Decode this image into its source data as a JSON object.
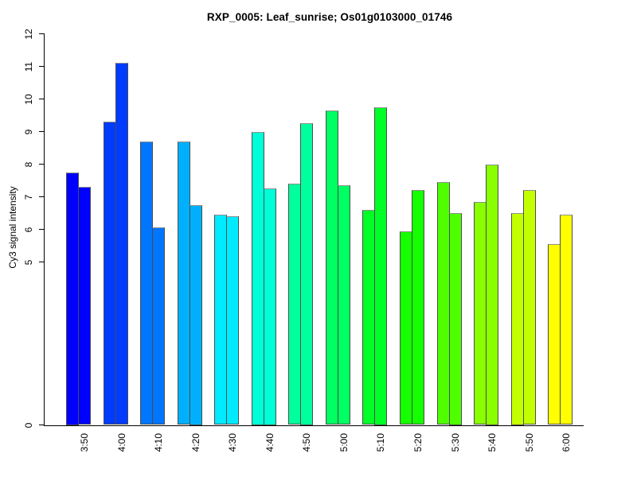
{
  "figure": {
    "background": "#FFFFFF"
  },
  "chart_data": {
    "type": "bar",
    "title": "RXP_0005: Leaf_sunrise; Os01g0103000_01746",
    "xlabel": "",
    "ylabel": "Cy3 signal intensity",
    "ylim": [
      0,
      12
    ],
    "yticks": [
      0,
      5,
      6,
      7,
      8,
      9,
      10,
      11,
      12
    ],
    "grid": false,
    "legend": "none",
    "bars_per_group": 2,
    "categories": [
      "3:50",
      "4:00",
      "4:10",
      "4:20",
      "4:30",
      "4:40",
      "4:50",
      "5:00",
      "5:10",
      "5:20",
      "5:30",
      "5:40",
      "5:50",
      "6:00"
    ],
    "series": [
      {
        "name": "left-bar",
        "values": [
          7.75,
          9.3,
          8.7,
          8.7,
          6.45,
          9.0,
          7.4,
          9.65,
          6.6,
          5.95,
          7.45,
          6.85,
          6.5,
          5.55
        ]
      },
      {
        "name": "right-bar",
        "values": [
          7.3,
          11.1,
          6.05,
          6.75,
          6.4,
          7.25,
          9.25,
          7.35,
          9.75,
          7.2,
          6.5,
          8.0,
          7.2,
          6.45
        ]
      }
    ],
    "group_colors": [
      "#0000FF",
      "#003BFF",
      "#0076FF",
      "#00B0FF",
      "#00EBFF",
      "#00FFD8",
      "#00FF9D",
      "#00FF62",
      "#00FF27",
      "#14FF00",
      "#4FFF00",
      "#89FF00",
      "#C4FF00",
      "#FFFF00"
    ],
    "bar_border_color": "#4D4D4D",
    "axis_color": "#000000",
    "text_color": "#000000"
  }
}
